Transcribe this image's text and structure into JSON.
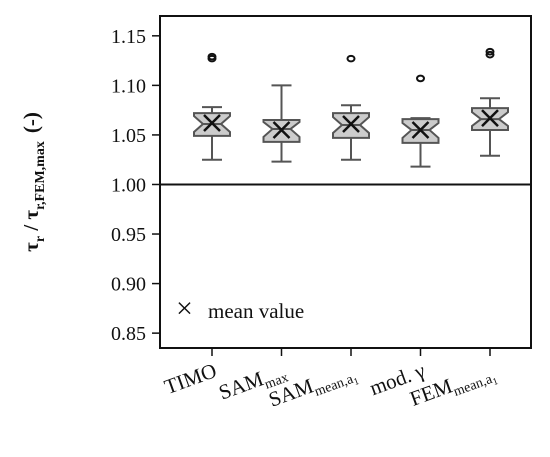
{
  "chart_data": {
    "type": "box",
    "categories": [
      {
        "main": "TIMO",
        "sub": "",
        "subsub": ""
      },
      {
        "main": "SAM",
        "sub": "max",
        "subsub": ""
      },
      {
        "main": "SAM",
        "sub": "mean,a",
        "subsub": "1"
      },
      {
        "main": "mod. γ",
        "sub": "",
        "subsub": ""
      },
      {
        "main": "FEM",
        "sub": "mean,a",
        "subsub": "1"
      }
    ],
    "boxes": [
      {
        "whisker_low": 1.025,
        "q1": 1.049,
        "median": 1.061,
        "q3": 1.072,
        "whisker_high": 1.078,
        "mean": 1.062,
        "notch_low": 1.053,
        "notch_high": 1.069,
        "outliers": [
          1.127,
          1.129
        ]
      },
      {
        "whisker_low": 1.023,
        "q1": 1.043,
        "median": 1.056,
        "q3": 1.065,
        "whisker_high": 1.1,
        "mean": 1.055,
        "notch_low": 1.048,
        "notch_high": 1.063,
        "outliers": []
      },
      {
        "whisker_low": 1.025,
        "q1": 1.047,
        "median": 1.06,
        "q3": 1.072,
        "whisker_high": 1.08,
        "mean": 1.061,
        "notch_low": 1.052,
        "notch_high": 1.068,
        "outliers": [
          1.127
        ]
      },
      {
        "whisker_low": 1.018,
        "q1": 1.042,
        "median": 1.055,
        "q3": 1.066,
        "whisker_high": 1.067,
        "mean": 1.055,
        "notch_low": 1.047,
        "notch_high": 1.062,
        "outliers": [
          1.107
        ]
      },
      {
        "whisker_low": 1.029,
        "q1": 1.055,
        "median": 1.066,
        "q3": 1.077,
        "whisker_high": 1.087,
        "mean": 1.067,
        "notch_low": 1.059,
        "notch_high": 1.073,
        "outliers": [
          1.131,
          1.134
        ]
      }
    ],
    "yticks": [
      "0.85",
      "0.90",
      "0.95",
      "1.00",
      "1.05",
      "1.10",
      "1.15"
    ],
    "ylim": [
      0.835,
      1.17
    ],
    "reference_line": 1.0,
    "ylabel": {
      "main1": "τ",
      "sub1": "r",
      "sep": " / ",
      "main2": "τ",
      "sub2": "r,FEM,max",
      "unit": "(-)"
    },
    "legend": {
      "symbol": "×",
      "label": "mean value",
      "position": "bottom-left"
    },
    "colors": {
      "box_fill": "#cccccc",
      "box_stroke": "#555555",
      "axis": "#111111",
      "mean_marker": "#111111"
    }
  }
}
